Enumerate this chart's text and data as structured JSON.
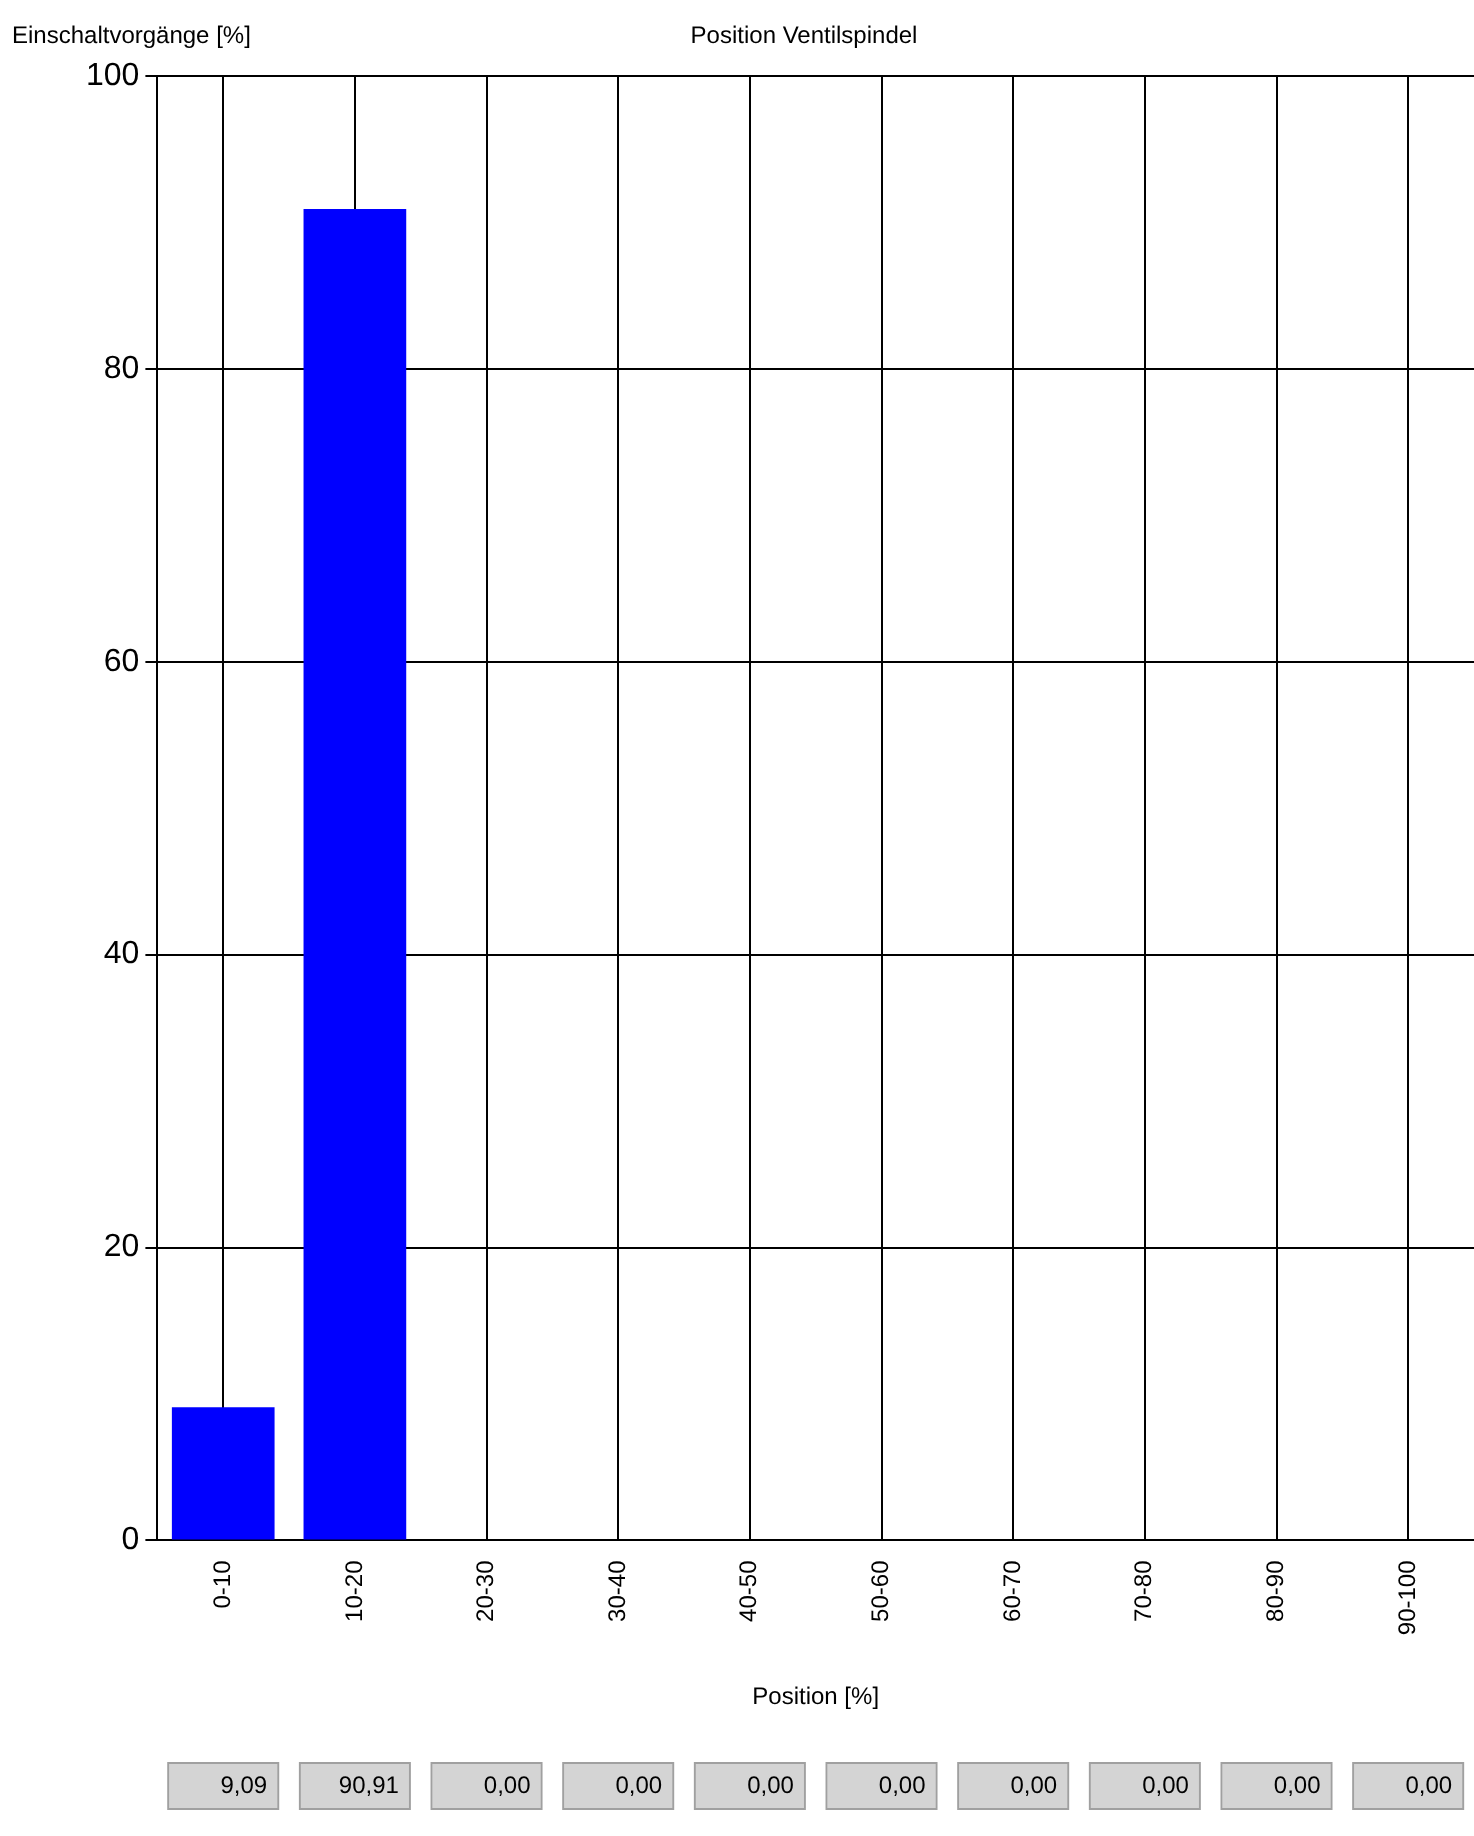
{
  "chart_data": {
    "type": "bar",
    "title": "Position Ventilspindel",
    "xlabel": "Position [%]",
    "ylabel": "Einschaltvorgänge [%]",
    "categories": [
      "0-10",
      "10-20",
      "20-30",
      "30-40",
      "40-50",
      "50-60",
      "60-70",
      "70-80",
      "80-90",
      "90-100"
    ],
    "values": [
      9.09,
      90.91,
      0,
      0,
      0,
      0,
      0,
      0,
      0,
      0
    ],
    "value_labels": [
      "9,09",
      "90,91",
      "0,00",
      "0,00",
      "0,00",
      "0,00",
      "0,00",
      "0,00",
      "0,00",
      "0,00"
    ],
    "color": "#0000ff",
    "ylim": [
      0,
      100
    ],
    "yticks": [
      0,
      20,
      40,
      60,
      80,
      100
    ],
    "grid": true
  }
}
